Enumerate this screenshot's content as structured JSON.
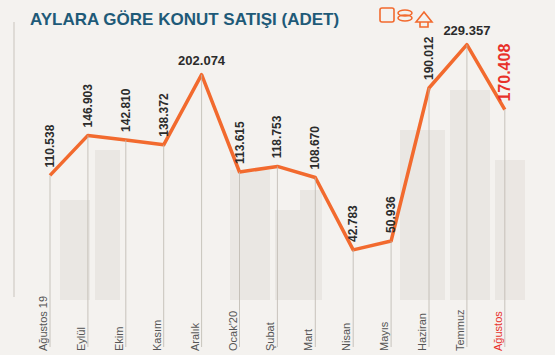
{
  "chart_data": {
    "type": "line",
    "title": "AYLARA GÖRE KONUT SATIŞI (ADET)",
    "categories": [
      "Ağustos 19",
      "Eylül",
      "Ekim",
      "Kasım",
      "Aralık",
      "Ocak'20",
      "Şubat",
      "Mart",
      "Nisan",
      "Mayıs",
      "Haziran",
      "Temmuz",
      "Ağustos"
    ],
    "values": [
      110538,
      146903,
      142810,
      138372,
      202074,
      113615,
      118753,
      108670,
      42783,
      50936,
      190012,
      229357,
      170408
    ],
    "value_labels": [
      "110.538",
      "146.903",
      "142.810",
      "138.372",
      "202.074",
      "113.615",
      "118.753",
      "108.670",
      "42.783",
      "50.936",
      "190.012",
      "229.357",
      "170.408"
    ],
    "color": "#f26a2e",
    "colors": [
      "#2b2b2b",
      "#2b2b2b",
      "#2b2b2b",
      "#2b2b2b",
      "#2b2b2b",
      "#2b2b2b",
      "#2b2b2b",
      "#2b2b2b",
      "#2b2b2b",
      "#2b2b2b",
      "#2b2b2b",
      "#2b2b2b",
      "#e8312a"
    ],
    "ylim": [
      0,
      250000
    ],
    "tick_labels": "x",
    "data_labels": true,
    "grid": true
  }
}
